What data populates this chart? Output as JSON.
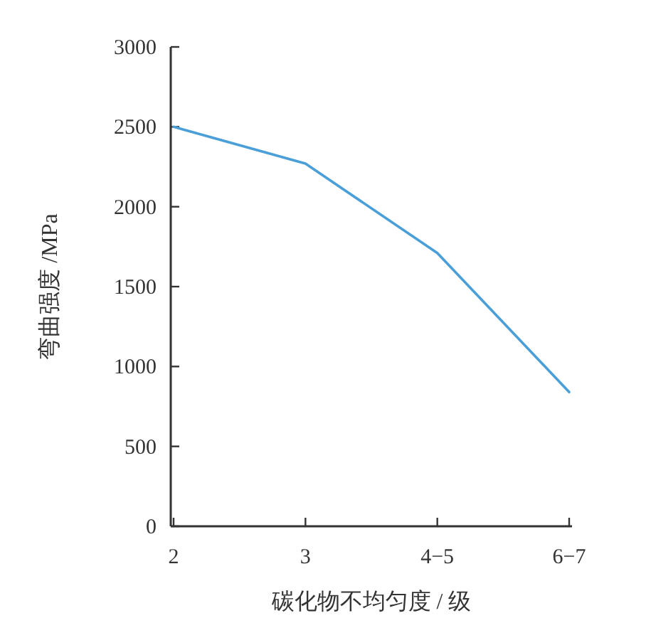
{
  "chart_data": {
    "type": "line",
    "xlabel": "碳化物不均匀度 / 级",
    "ylabel": "弯曲强度 /MPa",
    "categories": [
      "2",
      "3",
      "4−5",
      "6−7"
    ],
    "series": [
      {
        "color": "#4a9fd8",
        "values": [
          2500,
          2270,
          1710,
          840
        ]
      }
    ],
    "ylim": [
      0,
      3000
    ],
    "yticks": [
      0,
      500,
      1000,
      1500,
      2000,
      2500,
      3000
    ],
    "grid": false,
    "marker": "none",
    "line_style": "solid"
  }
}
